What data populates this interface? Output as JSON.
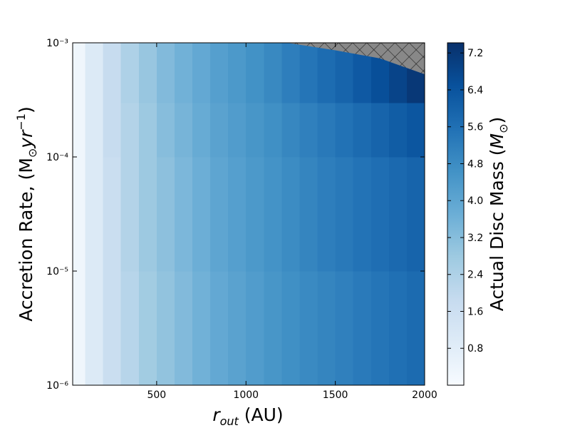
{
  "chart_data": {
    "type": "heatmap",
    "x_edges": [
      30,
      100,
      200,
      300,
      400,
      500,
      600,
      700,
      800,
      900,
      1000,
      1100,
      1200,
      1300,
      1400,
      1500,
      1600,
      1700,
      1800,
      1900,
      2000
    ],
    "y_edges": [
      1e-06,
      1e-05,
      0.0001,
      0.0003,
      0.001
    ],
    "values": [
      [
        0.3,
        1.0,
        1.7,
        2.2,
        2.7,
        3.0,
        3.3,
        3.6,
        3.9,
        4.1,
        4.3,
        4.5,
        4.7,
        4.85,
        5.0,
        5.15,
        5.3,
        5.45,
        5.6,
        5.75
      ],
      [
        0.3,
        1.0,
        1.7,
        2.3,
        2.8,
        3.1,
        3.4,
        3.7,
        4.0,
        4.2,
        4.4,
        4.6,
        4.8,
        5.0,
        5.2,
        5.35,
        5.5,
        5.65,
        5.8,
        5.95
      ],
      [
        0.3,
        1.0,
        1.8,
        2.3,
        2.8,
        3.2,
        3.5,
        3.8,
        4.1,
        4.3,
        4.5,
        4.7,
        4.95,
        5.15,
        5.35,
        5.55,
        5.75,
        5.95,
        6.15,
        6.35
      ],
      [
        0.3,
        1.0,
        1.8,
        2.4,
        2.9,
        3.3,
        3.6,
        3.9,
        4.2,
        4.4,
        4.65,
        4.9,
        5.2,
        5.45,
        5.7,
        5.95,
        6.25,
        6.55,
        6.85,
        7.2
      ]
    ],
    "colormap": "Blues",
    "clim": [
      0,
      7.42
    ],
    "colorbar_ticks": [
      0.8,
      1.6,
      2.4,
      3.2,
      {
        "value": 4,
        "label": "4.0"
      },
      4.8,
      5.6,
      6.4,
      7.2
    ],
    "colorbar_label": [
      "Actual Disc Mass (",
      "M",
      "⊙",
      ")"
    ],
    "xlim": [
      30,
      2000
    ],
    "xticks": [
      500,
      1000,
      1500,
      2000
    ],
    "ylim": [
      1e-06,
      0.001
    ],
    "yscale": "log",
    "yticks": [
      {
        "value": 1e-06,
        "label": "10⁻⁶"
      },
      {
        "value": 1e-05,
        "label": "10⁻⁵"
      },
      {
        "value": 0.0001,
        "label": "10⁻⁴"
      },
      {
        "value": 0.001,
        "label": "10⁻³"
      }
    ],
    "xlabel": [
      "r",
      "out",
      " (AU)"
    ],
    "ylabel": [
      "Accretion Rate, (M",
      "⊙",
      "yr",
      "−1",
      ")"
    ],
    "masked_region": {
      "x": [
        1230,
        1500,
        1750,
        2000,
        2000
      ],
      "y": [
        0.001,
        0.00086,
        0.00073,
        0.00053,
        0.001
      ]
    },
    "mask_color": "#888888"
  }
}
